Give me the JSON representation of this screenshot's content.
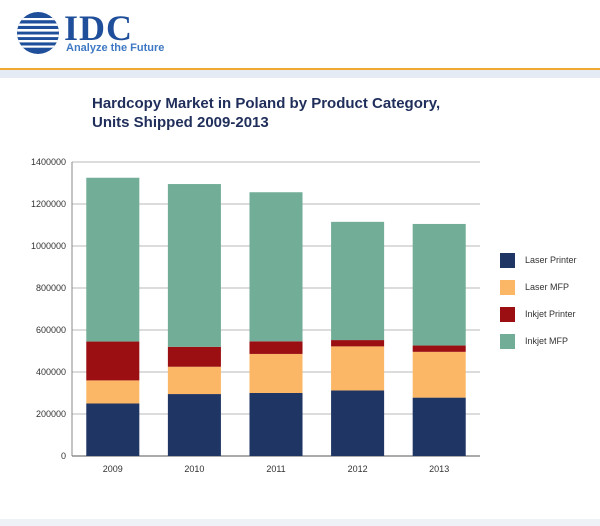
{
  "header": {
    "logo_text": "IDC",
    "tagline": "Analyze the Future"
  },
  "colors": {
    "laser_printer": "#1f3564",
    "laser_mfp": "#fbb766",
    "inkjet_printer": "#9b0e12",
    "inkjet_mfp": "#72ad97",
    "brand_blue": "#1f4e9a",
    "accent_orange": "#f0a830"
  },
  "chart_data": {
    "type": "bar",
    "stacked": true,
    "title": "Hardcopy Market in Poland by Product Category, Units Shipped 2009-2013",
    "title_lines": [
      "Hardcopy Market in Poland by Product Category,",
      "Units Shipped 2009-2013"
    ],
    "xlabel": "",
    "ylabel": "",
    "categories": [
      "2009",
      "2010",
      "2011",
      "2012",
      "2013"
    ],
    "ylim": [
      0,
      1400000
    ],
    "yticks": [
      0,
      200000,
      400000,
      600000,
      800000,
      1000000,
      1200000,
      1400000
    ],
    "ytick_labels": [
      "0",
      "200000",
      "400000",
      "600000",
      "800000",
      "1000000",
      "1200000",
      "1400000"
    ],
    "grid": true,
    "legend_position": "right",
    "series": [
      {
        "name": "Laser Printer",
        "color": "#1f3564",
        "values": [
          250000,
          295000,
          300000,
          312000,
          278000
        ]
      },
      {
        "name": "Laser MFP",
        "color": "#fbb766",
        "values": [
          110000,
          130000,
          186000,
          210000,
          218000
        ]
      },
      {
        "name": "Inkjet Printer",
        "color": "#9b0e12",
        "values": [
          185000,
          95000,
          60000,
          30000,
          30000
        ]
      },
      {
        "name": "Inkjet MFP",
        "color": "#72ad97",
        "values": [
          780000,
          775000,
          710000,
          563000,
          579000
        ]
      }
    ]
  }
}
